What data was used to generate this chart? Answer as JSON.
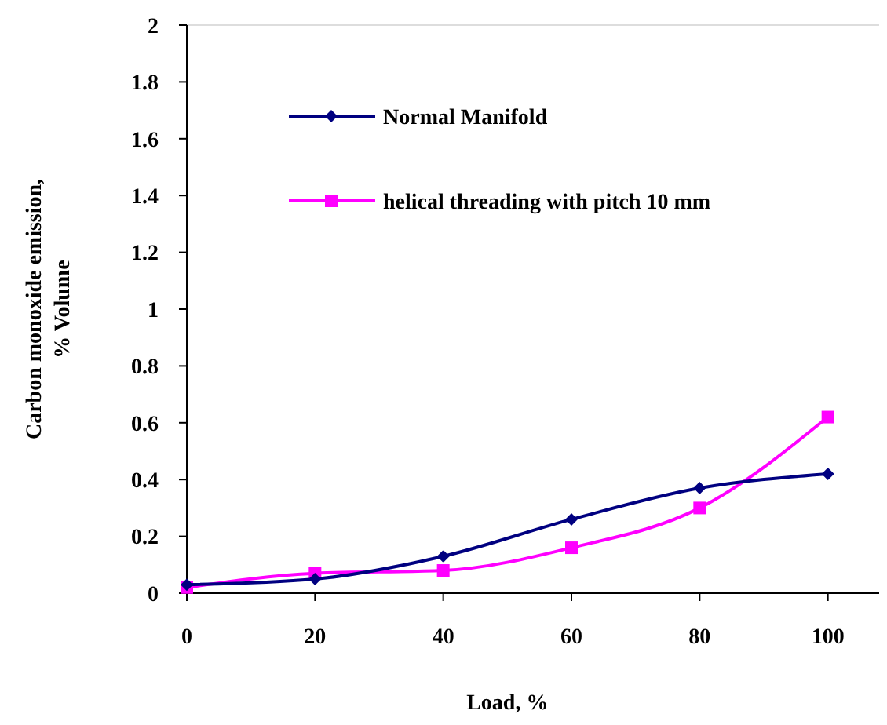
{
  "chart_data": {
    "type": "line",
    "xlabel": "Load, %",
    "ylabel": "Carbon monoxide emission, % Volume",
    "x": [
      0,
      20,
      40,
      60,
      80,
      100
    ],
    "xlim": [
      0,
      108
    ],
    "xticks": [
      0,
      20,
      40,
      60,
      80,
      100
    ],
    "ylim": [
      0,
      2
    ],
    "yticks": [
      0,
      0.2,
      0.4,
      0.6,
      0.8,
      1,
      1.2,
      1.4,
      1.6,
      1.8,
      2
    ],
    "grid": false,
    "legend": "top left",
    "series": [
      {
        "name": "Normal Manifold",
        "color": "#000080",
        "marker": "diamond",
        "values": [
          0.03,
          0.05,
          0.13,
          0.26,
          0.37,
          0.42
        ]
      },
      {
        "name": "helical threading with pitch 10 mm",
        "color": "#ff00ff",
        "marker": "square",
        "values": [
          0.02,
          0.07,
          0.08,
          0.16,
          0.3,
          0.62
        ]
      }
    ]
  }
}
